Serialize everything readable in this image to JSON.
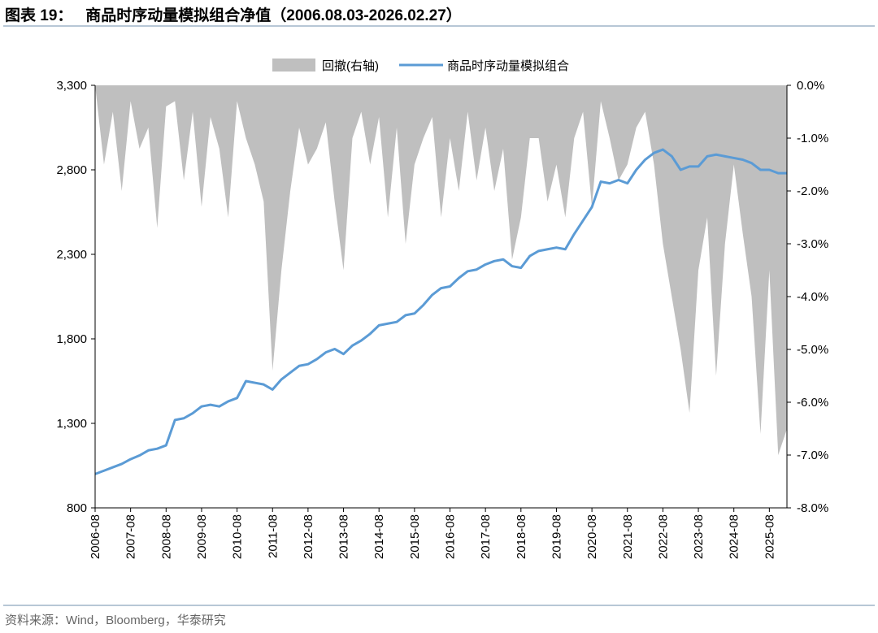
{
  "title": "图表 19：   商品时序动量模拟组合净值（2006.08.03-2026.02.27）",
  "source": "资料来源：Wind，Bloomberg，华泰研究",
  "chart_data": {
    "type": "line",
    "title": "商品时序动量模拟组合净值（2006.08.03-2026.02.27）",
    "legend": [
      "回撤(右轴)",
      "商品时序动量模拟组合"
    ],
    "legend_position": "top-center",
    "colors": {
      "drawdown": "#bfbfbf",
      "nav": "#5b9bd5"
    },
    "x_start": 2006.6,
    "x_step_years": 0.25,
    "x_ticks": [
      "2006-08",
      "2007-08",
      "2008-08",
      "2009-08",
      "2010-08",
      "2011-08",
      "2012-08",
      "2013-08",
      "2014-08",
      "2015-08",
      "2016-08",
      "2017-08",
      "2018-08",
      "2019-08",
      "2020-08",
      "2021-08",
      "2022-08",
      "2023-08",
      "2024-08",
      "2025-08"
    ],
    "y_left": {
      "ylim": [
        800,
        3300
      ],
      "ticks": [
        "800",
        "1,300",
        "1,800",
        "2,300",
        "2,800",
        "3,300"
      ],
      "tick_values": [
        800,
        1300,
        1800,
        2300,
        2800,
        3300
      ]
    },
    "y_right": {
      "ylim": [
        -8,
        0
      ],
      "ticks": [
        "-8.0%",
        "-7.0%",
        "-6.0%",
        "-5.0%",
        "-4.0%",
        "-3.0%",
        "-2.0%",
        "-1.0%",
        "0.0%"
      ],
      "tick_values": [
        -8,
        -7,
        -6,
        -5,
        -4,
        -3,
        -2,
        -1,
        0
      ]
    },
    "series": [
      {
        "name": "商品时序动量模拟组合",
        "axis": "left",
        "values": [
          1000,
          1020,
          1040,
          1060,
          1088,
          1110,
          1140,
          1150,
          1170,
          1320,
          1330,
          1360,
          1400,
          1410,
          1400,
          1430,
          1450,
          1550,
          1540,
          1530,
          1500,
          1560,
          1600,
          1640,
          1650,
          1680,
          1720,
          1740,
          1710,
          1760,
          1790,
          1830,
          1880,
          1890,
          1900,
          1940,
          1950,
          2000,
          2060,
          2100,
          2110,
          2160,
          2200,
          2210,
          2240,
          2260,
          2270,
          2230,
          2220,
          2290,
          2320,
          2330,
          2340,
          2330,
          2420,
          2500,
          2580,
          2730,
          2720,
          2740,
          2720,
          2800,
          2860,
          2900,
          2920,
          2880,
          2800,
          2820,
          2820,
          2880,
          2890,
          2880,
          2870,
          2860,
          2840,
          2800,
          2800,
          2780,
          2780
        ]
      },
      {
        "name": "回撤(右轴)",
        "axis": "right",
        "values": [
          0,
          -1.5,
          -0.5,
          -2.0,
          -0.3,
          -1.2,
          -0.8,
          -2.7,
          -0.4,
          -0.3,
          -1.8,
          -0.5,
          -2.3,
          -0.6,
          -1.2,
          -2.5,
          -0.3,
          -1.0,
          -1.5,
          -2.2,
          -5.4,
          -3.5,
          -2.0,
          -0.8,
          -1.5,
          -1.2,
          -0.7,
          -2.2,
          -3.5,
          -1.0,
          -0.5,
          -1.5,
          -0.6,
          -2.5,
          -0.8,
          -3.0,
          -1.5,
          -1.0,
          -0.6,
          -2.5,
          -1.0,
          -2.0,
          -0.5,
          -1.8,
          -0.8,
          -2.0,
          -1.2,
          -3.3,
          -2.5,
          -1.0,
          -1.0,
          -2.2,
          -1.5,
          -2.5,
          -1.0,
          -0.5,
          -2.3,
          -0.3,
          -1.0,
          -1.8,
          -1.5,
          -0.8,
          -0.5,
          -1.5,
          -3.0,
          -4.0,
          -5.0,
          -6.2,
          -3.5,
          -2.5,
          -5.5,
          -3.0,
          -1.5,
          -2.8,
          -4.0,
          -6.6,
          -3.5,
          -7.0,
          -6.5
        ]
      }
    ]
  }
}
